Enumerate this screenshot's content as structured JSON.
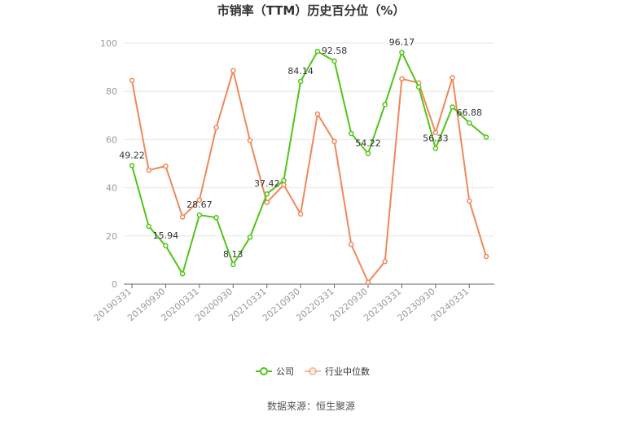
{
  "chart_data": {
    "type": "line",
    "title": "市销率（TTM）历史百分位（%）",
    "xlabel": "",
    "ylabel": "",
    "ylim": [
      0,
      100
    ],
    "yticks": [
      0,
      20,
      40,
      60,
      80,
      100
    ],
    "grid": true,
    "legend_position": "bottom-center",
    "categories": [
      "20190331",
      "20190630",
      "20190930",
      "20191231",
      "20200331",
      "20200630",
      "20200930",
      "20201231",
      "20210331",
      "20210630",
      "20210930",
      "20211231",
      "20220331",
      "20220630",
      "20220930",
      "20221231",
      "20230331",
      "20230630",
      "20230930",
      "20231231",
      "20240331",
      "20240630"
    ],
    "tick_labels": [
      "20190331",
      "20190930",
      "20200331",
      "20200930",
      "20210331",
      "20210930",
      "20220331",
      "20220930",
      "20230331",
      "20230930",
      "20240331"
    ],
    "series": [
      {
        "name": "公司",
        "color": "#52c41a",
        "values": [
          49.22,
          24.0,
          15.94,
          4.3,
          28.67,
          27.6,
          8.13,
          19.5,
          37.42,
          43.0,
          84.14,
          96.6,
          92.58,
          62.5,
          54.22,
          74.5,
          96.17,
          81.8,
          56.33,
          73.5,
          66.88,
          61.0
        ],
        "labels": [
          "49.22",
          "",
          "15.94",
          "",
          "28.67",
          "",
          "8.13",
          "",
          "37.42",
          "",
          "84.14",
          "",
          "92.58",
          "",
          "54.22",
          "",
          "96.17",
          "",
          "56.33",
          "",
          "66.88",
          ""
        ]
      },
      {
        "name": "行业中位数",
        "color": "#f0885a",
        "values": [
          84.5,
          47.3,
          49.0,
          27.9,
          34.9,
          65.0,
          88.6,
          59.6,
          33.9,
          41.2,
          29.1,
          70.6,
          59.2,
          16.5,
          0.8,
          9.4,
          85.2,
          83.5,
          62.9,
          85.7,
          34.5,
          11.5
        ],
        "labels": []
      }
    ]
  },
  "source_text": "数据来源：恒生聚源"
}
